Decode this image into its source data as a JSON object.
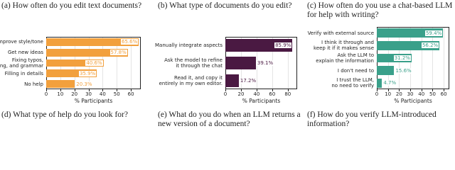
{
  "header_captions": [
    "(a) How often do you edit text documents?",
    "(b) What type of documents do you edit?",
    "(c) How often do you use a chat-based LLM for help with writing?"
  ],
  "chart_data": [
    {
      "type": "barh",
      "caption": "(d) What type of help do you look for?",
      "xlabel": "% Participants",
      "categories": [
        "Improve style/tone",
        "Get new ideas",
        "Fixing typos,\nspelling, and grammar",
        "Filling in details",
        "No help"
      ],
      "values": [
        65.6,
        57.8,
        40.6,
        35.9,
        20.3
      ],
      "value_labels": [
        "65.6%",
        "57.8%",
        "40.6%",
        "35.9%",
        "20.3%"
      ],
      "color": "#f2a03d",
      "xlim": [
        0,
        67
      ],
      "xticks": [
        0,
        10,
        20,
        30,
        40,
        50,
        60
      ],
      "grid": true
    },
    {
      "type": "barh",
      "caption": "(e) What do you do when an LLM returns a new version of a document?",
      "xlabel": "% Participants",
      "categories": [
        "Manually integrate aspects",
        "Ask the model to refine\nit through the chat",
        "Read it, and copy it\nentirely in my own editor."
      ],
      "values": [
        85.9,
        39.1,
        17.2
      ],
      "value_labels": [
        "85.9%",
        "39.1%",
        "17.2%"
      ],
      "color": "#4a1942",
      "xlim": [
        0,
        92
      ],
      "xticks": [
        0,
        20,
        40,
        60,
        80
      ],
      "grid": true
    },
    {
      "type": "barh",
      "caption": "(f) How do you verify LLM-introduced information?",
      "xlabel": "% Participants",
      "categories": [
        "Verify with external source",
        "I think it through and\nkeep it if it makes sense",
        "Ask the LLM to\nexplain the information",
        "I don't need to",
        "I trust the LLM,\nno need to verify"
      ],
      "values": [
        59.4,
        56.2,
        31.2,
        15.6,
        4.7
      ],
      "value_labels": [
        "59.4%",
        "56.2%",
        "31.2%",
        "15.6%",
        "4.7%"
      ],
      "color": "#3aa08a",
      "xlim": [
        0,
        65
      ],
      "xticks": [
        0,
        10,
        20,
        30,
        40,
        50,
        60
      ],
      "grid": true
    }
  ]
}
